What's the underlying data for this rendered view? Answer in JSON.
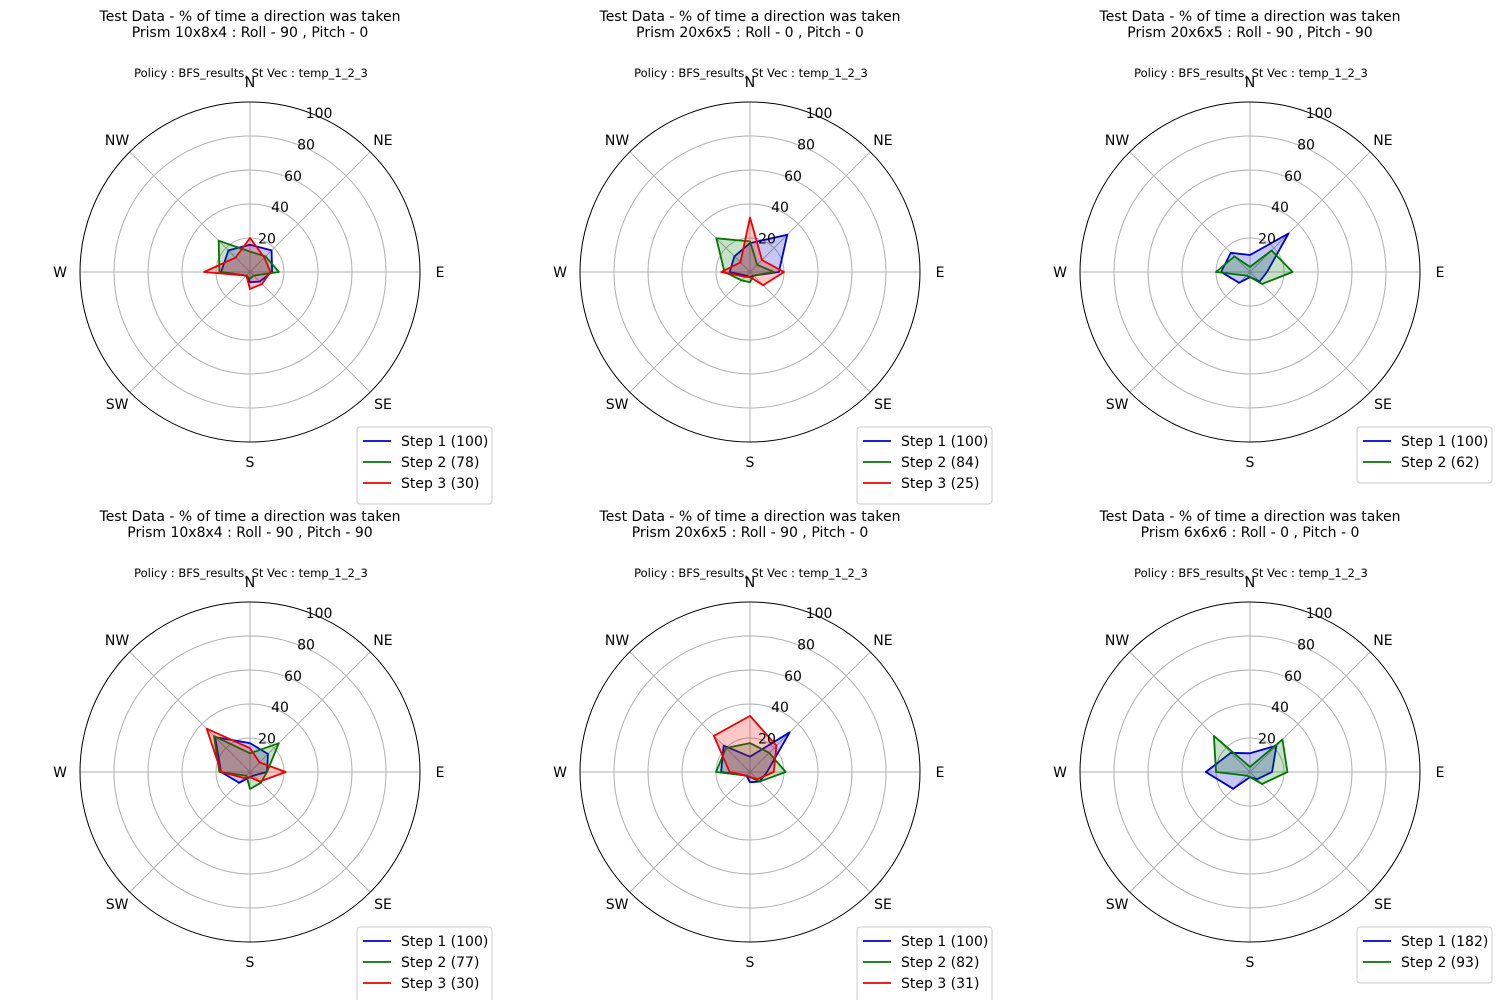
{
  "chart_data": [
    {
      "type": "radar",
      "title": "Test Data - % of time a direction was taken",
      "subtitle": "Prism 10x8x4 : Roll - 90 , Pitch - 0",
      "caption": "Policy : BFS_results, St Vec : temp_1_2_3",
      "directions": [
        "N",
        "NE",
        "E",
        "SE",
        "S",
        "SW",
        "W",
        "NW"
      ],
      "r_ticks": [
        "20",
        "40",
        "60",
        "80",
        "100"
      ],
      "rlim": [
        0,
        100
      ],
      "legend_position": "lower-right",
      "series": [
        {
          "name": "Step 1 (100)",
          "color": "#0000cc",
          "values": [
            16,
            18,
            13,
            8,
            6,
            3,
            17,
            18
          ]
        },
        {
          "name": "Step 2 (78)",
          "color": "#007700",
          "values": [
            12,
            13,
            17,
            3,
            4,
            3,
            18,
            26
          ]
        },
        {
          "name": "Step 3 (30)",
          "color": "#ee0000",
          "values": [
            20,
            12,
            12,
            10,
            10,
            3,
            27,
            12
          ]
        }
      ]
    },
    {
      "type": "radar",
      "title": "Test Data - % of time a direction was taken",
      "subtitle": "Prism 20x6x5 : Roll - 0 , Pitch - 0",
      "caption": "Policy : BFS_results, St Vec : temp_1_2_3",
      "directions": [
        "N",
        "NE",
        "E",
        "SE",
        "S",
        "SW",
        "W",
        "NW"
      ],
      "r_ticks": [
        "20",
        "40",
        "60",
        "80",
        "100"
      ],
      "rlim": [
        0,
        100
      ],
      "legend_position": "lower-right",
      "series": [
        {
          "name": "Step 1 (100)",
          "color": "#0000cc",
          "values": [
            17,
            31,
            17,
            3,
            3,
            3,
            12,
            13
          ]
        },
        {
          "name": "Step 2 (84)",
          "color": "#007700",
          "values": [
            18,
            6,
            14,
            3,
            6,
            7,
            15,
            28
          ]
        },
        {
          "name": "Step 3 (25)",
          "color": "#ee0000",
          "values": [
            32,
            10,
            20,
            11,
            3,
            4,
            17,
            8
          ]
        }
      ]
    },
    {
      "type": "radar",
      "title": "Test Data - % of time a direction was taken",
      "subtitle": "Prism 20x6x5 : Roll - 90 , Pitch - 90",
      "caption": "Policy : BFS_results, St Vec : temp_1_2_3",
      "directions": [
        "N",
        "NE",
        "E",
        "SE",
        "S",
        "SW",
        "W",
        "NW"
      ],
      "r_ticks": [
        "20",
        "40",
        "60",
        "80",
        "100"
      ],
      "rlim": [
        0,
        100
      ],
      "legend_position": "lower-right",
      "series": [
        {
          "name": "Step 1 (100)",
          "color": "#0000cc",
          "values": [
            10,
            32,
            10,
            8,
            3,
            9,
            17,
            16
          ]
        },
        {
          "name": "Step 2 (62)",
          "color": "#007700",
          "values": [
            3,
            18,
            25,
            10,
            3,
            3,
            20,
            13
          ]
        }
      ]
    },
    {
      "type": "radar",
      "title": "Test Data - % of time a direction was taken",
      "subtitle": "Prism 10x8x4 : Roll - 90 , Pitch - 90",
      "caption": "Policy : BFS_results, St Vec : temp_1_2_3",
      "directions": [
        "N",
        "NE",
        "E",
        "SE",
        "S",
        "SW",
        "W",
        "NW"
      ],
      "r_ticks": [
        "20",
        "40",
        "60",
        "80",
        "100"
      ],
      "rlim": [
        0,
        100
      ],
      "legend_position": "lower-right",
      "series": [
        {
          "name": "Step 1 (100)",
          "color": "#0000cc",
          "values": [
            17,
            15,
            10,
            3,
            3,
            9,
            17,
            29
          ]
        },
        {
          "name": "Step 2 (77)",
          "color": "#007700",
          "values": [
            11,
            24,
            10,
            9,
            10,
            3,
            18,
            30
          ]
        },
        {
          "name": "Step 3 (30)",
          "color": "#ee0000",
          "values": [
            14,
            8,
            21,
            8,
            3,
            5,
            17,
            36
          ]
        }
      ]
    },
    {
      "type": "radar",
      "title": "Test Data - % of time a direction was taken",
      "subtitle": "Prism 20x6x5 : Roll - 90 , Pitch - 0",
      "caption": "Policy : BFS_results, St Vec : temp_1_2_3",
      "directions": [
        "N",
        "NE",
        "E",
        "SE",
        "S",
        "SW",
        "W",
        "NW"
      ],
      "r_ticks": [
        "20",
        "40",
        "60",
        "80",
        "100"
      ],
      "rlim": [
        0,
        100
      ],
      "legend_position": "lower-right",
      "series": [
        {
          "name": "Step 1 (100)",
          "color": "#0000cc",
          "values": [
            9,
            33,
            10,
            8,
            6,
            3,
            17,
            22
          ]
        },
        {
          "name": "Step 2 (82)",
          "color": "#007700",
          "values": [
            17,
            16,
            21,
            8,
            3,
            3,
            20,
            20
          ]
        },
        {
          "name": "Step 3 (31)",
          "color": "#ee0000",
          "values": [
            33,
            22,
            14,
            6,
            3,
            3,
            12,
            30
          ]
        }
      ]
    },
    {
      "type": "radar",
      "title": "Test Data - % of time a direction was taken",
      "subtitle": "Prism 6x6x6 : Roll - 0 , Pitch - 0",
      "caption": "Policy : BFS_results, St Vec : temp_1_2_3",
      "directions": [
        "N",
        "NE",
        "E",
        "SE",
        "S",
        "SW",
        "W",
        "NW"
      ],
      "r_ticks": [
        "20",
        "40",
        "60",
        "80",
        "100"
      ],
      "rlim": [
        0,
        100
      ],
      "legend_position": "lower-right",
      "series": [
        {
          "name": "Step 1 (182)",
          "color": "#0000cc",
          "values": [
            11,
            22,
            13,
            6,
            3,
            14,
            26,
            16
          ]
        },
        {
          "name": "Step 2 (93)",
          "color": "#007700",
          "values": [
            3,
            27,
            22,
            10,
            3,
            3,
            20,
            30
          ]
        }
      ]
    }
  ]
}
